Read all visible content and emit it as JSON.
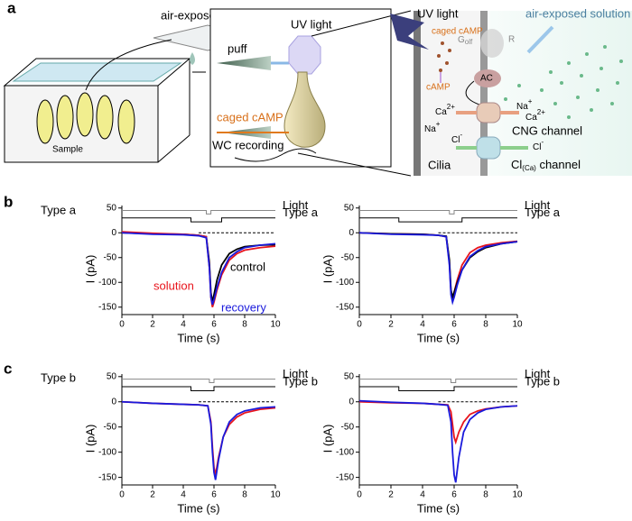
{
  "panels": {
    "a": "a",
    "b": "b",
    "c": "c"
  },
  "row_labels": [
    "Type a",
    "Type b"
  ],
  "diagram": {
    "air_solution": "air-exposed solution",
    "sample": "Sample",
    "puff": "puff",
    "uv": "UV light",
    "caged": "caged cAMP",
    "wc": "WC recording",
    "uv2": "UV light",
    "caged2": "caged cAMP",
    "air2": "air-exposed solution",
    "golf": {
      "base": "G",
      "sub": "olf"
    },
    "r": "R",
    "camp": "cAMP",
    "ac": "AC",
    "ca1": {
      "base": "Ca",
      "sup": "2+"
    },
    "na1": {
      "base": "Na",
      "sup": "+"
    },
    "na2": {
      "base": "Na",
      "sup": "+"
    },
    "ca2": {
      "base": "Ca",
      "sup": "2+"
    },
    "cng": "CNG channel",
    "cl1": {
      "base": "Cl",
      "sup": "-"
    },
    "cl2": {
      "base": "Cl",
      "sup": "-"
    },
    "clca": {
      "base": "Cl",
      "sub": "(Ca)",
      "rest": " channel"
    },
    "cilia": "Cilia"
  },
  "chart_data": [
    {
      "type": "line",
      "xlabel": "Time (s)",
      "ylabel": "I (pA)",
      "xlim": [
        0,
        10
      ],
      "xticks": [
        0,
        2,
        4,
        6,
        8,
        10
      ],
      "ylim": [
        -165,
        55
      ],
      "yticks": [
        -150,
        -100,
        -50,
        0,
        50
      ],
      "hline": 0,
      "x": [
        0,
        2,
        4,
        5,
        5.5,
        5.7,
        5.8,
        5.9,
        6,
        6.2,
        6.5,
        7,
        7.5,
        8,
        9,
        10
      ],
      "series": [
        {
          "name": "Light",
          "color": "#888888",
          "x": [
            0,
            5.5,
            5.5,
            5.8,
            5.8,
            10
          ],
          "values": [
            45,
            45,
            38,
            38,
            45,
            45
          ]
        },
        {
          "name": "Type a",
          "color": "#000000",
          "x": [
            0,
            4.5,
            4.5,
            6.5,
            6.5,
            10
          ],
          "values": [
            30,
            30,
            22,
            22,
            30,
            30
          ]
        },
        {
          "name": "control",
          "color": "#000000",
          "values": [
            0,
            -2,
            -3,
            -5,
            -8,
            -60,
            -120,
            -140,
            -125,
            -95,
            -65,
            -42,
            -33,
            -28,
            -25,
            -24
          ]
        },
        {
          "name": "solution",
          "color": "#e8141c",
          "values": [
            2,
            -1,
            -3,
            -5,
            -8,
            -70,
            -130,
            -150,
            -140,
            -115,
            -85,
            -55,
            -42,
            -35,
            -30,
            -27
          ]
        },
        {
          "name": "recovery",
          "color": "#1a1adc",
          "values": [
            0,
            -3,
            -4,
            -6,
            -10,
            -70,
            -130,
            -145,
            -135,
            -110,
            -80,
            -50,
            -38,
            -30,
            -25,
            -22
          ]
        }
      ]
    },
    {
      "type": "line",
      "xlabel": "Time (s)",
      "ylabel": "I (pA)",
      "xlim": [
        0,
        10
      ],
      "xticks": [
        0,
        2,
        4,
        6,
        8,
        10
      ],
      "ylim": [
        -165,
        55
      ],
      "yticks": [
        -150,
        -100,
        -50,
        0,
        50
      ],
      "hline": 0,
      "x": [
        0,
        2,
        4,
        5,
        5.5,
        5.7,
        5.8,
        5.9,
        6,
        6.2,
        6.5,
        7,
        7.5,
        8,
        9,
        10
      ],
      "series": [
        {
          "name": "Light",
          "color": "#888888",
          "x": [
            0,
            5.7,
            5.7,
            6,
            6,
            10
          ],
          "values": [
            45,
            45,
            38,
            38,
            45,
            45
          ]
        },
        {
          "name": "Type a",
          "color": "#000000",
          "x": [
            0,
            2.5,
            2.5,
            6.5,
            6.5,
            10
          ],
          "values": [
            30,
            30,
            22,
            22,
            30,
            30
          ]
        },
        {
          "color": "#e8141c",
          "values": [
            0,
            -2,
            -3,
            -5,
            -8,
            -60,
            -120,
            -135,
            -120,
            -95,
            -65,
            -40,
            -30,
            -25,
            -20,
            -17
          ]
        },
        {
          "color": "#000000",
          "values": [
            0,
            -2,
            -3,
            -5,
            -7,
            -55,
            -115,
            -130,
            -120,
            -100,
            -75,
            -50,
            -38,
            -30,
            -22,
            -18
          ]
        },
        {
          "color": "#1a1adc",
          "values": [
            0,
            -3,
            -4,
            -5,
            -8,
            -65,
            -125,
            -140,
            -130,
            -105,
            -75,
            -48,
            -36,
            -28,
            -22,
            -18
          ]
        }
      ]
    },
    {
      "type": "line",
      "xlabel": "Time (s)",
      "ylabel": "I (pA)",
      "xlim": [
        0,
        10
      ],
      "xticks": [
        0,
        2,
        4,
        6,
        8,
        10
      ],
      "ylim": [
        -165,
        55
      ],
      "yticks": [
        -150,
        -100,
        -50,
        0,
        50
      ],
      "hline": 0,
      "x": [
        0,
        2,
        4,
        5,
        5.6,
        5.8,
        5.9,
        6,
        6.1,
        6.3,
        6.6,
        7,
        7.5,
        8,
        9,
        10
      ],
      "series": [
        {
          "name": "Light",
          "color": "#888888",
          "x": [
            0,
            5.7,
            5.7,
            6,
            6,
            10
          ],
          "values": [
            45,
            45,
            38,
            38,
            45,
            45
          ]
        },
        {
          "name": "Type b",
          "color": "#000000",
          "x": [
            0,
            4.5,
            4.5,
            6,
            6,
            10
          ],
          "values": [
            30,
            30,
            22,
            22,
            30,
            30
          ]
        },
        {
          "color": "#e8141c",
          "values": [
            0,
            -3,
            -5,
            -6,
            -8,
            -40,
            -90,
            -130,
            -145,
            -110,
            -70,
            -45,
            -30,
            -22,
            -15,
            -12
          ]
        },
        {
          "color": "#1a1adc",
          "values": [
            0,
            -3,
            -5,
            -6,
            -8,
            -45,
            -100,
            -140,
            -155,
            -115,
            -70,
            -40,
            -25,
            -18,
            -12,
            -10
          ]
        }
      ]
    },
    {
      "type": "line",
      "xlabel": "Time (s)",
      "ylabel": "I (pA)",
      "xlim": [
        0,
        10
      ],
      "xticks": [
        0,
        2,
        4,
        6,
        8,
        10
      ],
      "ylim": [
        -165,
        55
      ],
      "yticks": [
        -150,
        -100,
        -50,
        0,
        50
      ],
      "hline": 0,
      "x": [
        0,
        2,
        4,
        5,
        5.6,
        5.8,
        5.9,
        6,
        6.1,
        6.3,
        6.6,
        7,
        7.5,
        8,
        9,
        10
      ],
      "series": [
        {
          "name": "Light",
          "color": "#888888",
          "x": [
            0,
            5.8,
            5.8,
            6.1,
            6.1,
            10
          ],
          "values": [
            45,
            45,
            38,
            38,
            45,
            45
          ]
        },
        {
          "name": "Type b",
          "color": "#000000",
          "x": [
            0,
            2.5,
            2.5,
            6,
            6,
            10
          ],
          "values": [
            30,
            30,
            22,
            22,
            30,
            30
          ]
        },
        {
          "color": "#e8141c",
          "values": [
            0,
            -2,
            -3,
            -5,
            -6,
            -20,
            -45,
            -70,
            -80,
            -60,
            -40,
            -25,
            -18,
            -14,
            -10,
            -8
          ]
        },
        {
          "color": "#1a1adc",
          "values": [
            2,
            -1,
            -3,
            -5,
            -7,
            -40,
            -100,
            -145,
            -160,
            -110,
            -60,
            -35,
            -22,
            -15,
            -10,
            -8
          ]
        }
      ]
    }
  ]
}
